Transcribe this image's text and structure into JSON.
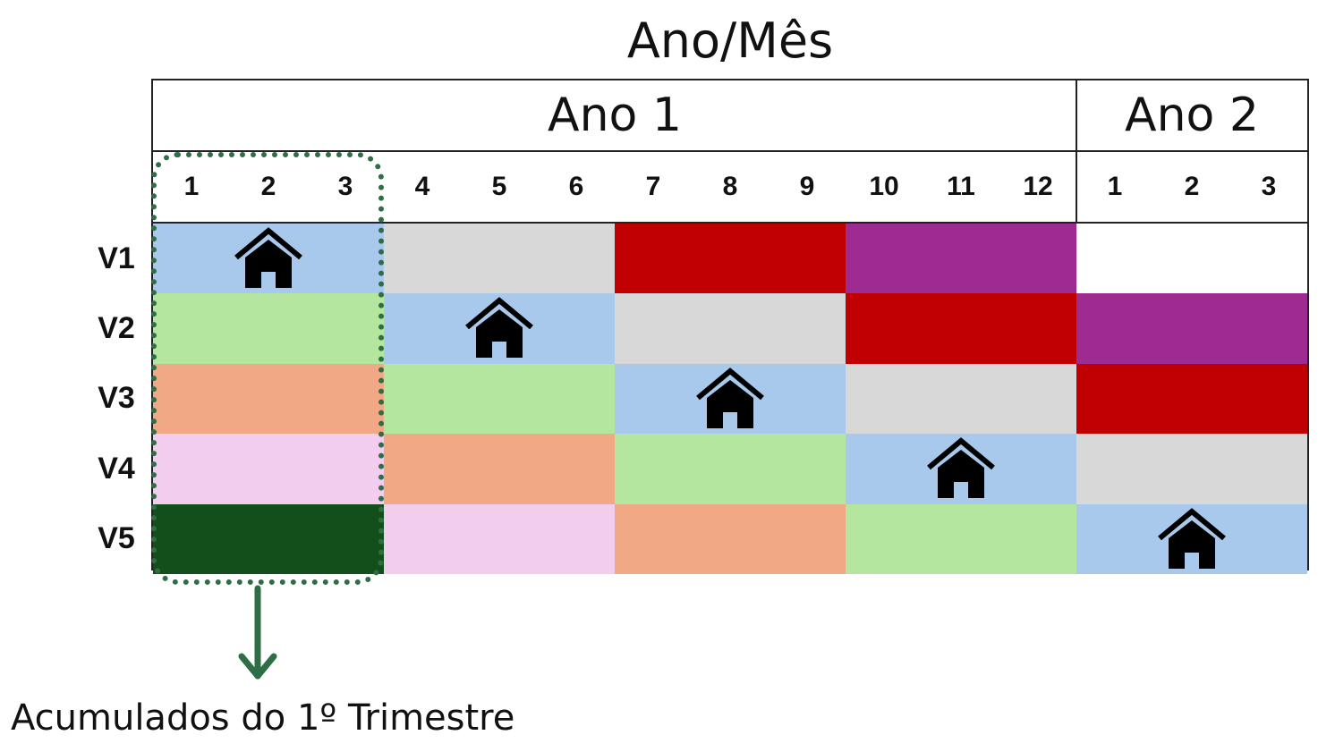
{
  "title": "Ano/Mês",
  "years": [
    {
      "label": "Ano 1",
      "months": 12
    },
    {
      "label": "Ano 2",
      "months": 3
    }
  ],
  "month_labels": [
    "1",
    "2",
    "3",
    "4",
    "5",
    "6",
    "7",
    "8",
    "9",
    "10",
    "11",
    "12",
    "1",
    "2",
    "3"
  ],
  "colors": {
    "blue": "#a9c9ec",
    "gray": "#d8d8d8",
    "red": "#c00000",
    "purple": "#9e2b8f",
    "white": "#ffffff",
    "green": "#b4e6a0",
    "orange": "#f0a984",
    "pink": "#f2cdee",
    "darkgreen": "#124f1b",
    "highlight": "#2e6e45"
  },
  "rows": [
    {
      "label": "V1",
      "blocks": [
        {
          "start": 1,
          "span": 3,
          "color": "blue",
          "icon": "house-icon"
        },
        {
          "start": 4,
          "span": 3,
          "color": "gray"
        },
        {
          "start": 7,
          "span": 3,
          "color": "red"
        },
        {
          "start": 10,
          "span": 3,
          "color": "purple"
        },
        {
          "start": 13,
          "span": 3,
          "color": "white"
        }
      ]
    },
    {
      "label": "V2",
      "blocks": [
        {
          "start": 1,
          "span": 3,
          "color": "green"
        },
        {
          "start": 4,
          "span": 3,
          "color": "blue",
          "icon": "house-icon"
        },
        {
          "start": 7,
          "span": 3,
          "color": "gray"
        },
        {
          "start": 10,
          "span": 3,
          "color": "red"
        },
        {
          "start": 13,
          "span": 3,
          "color": "purple"
        }
      ]
    },
    {
      "label": "V3",
      "blocks": [
        {
          "start": 1,
          "span": 3,
          "color": "orange"
        },
        {
          "start": 4,
          "span": 3,
          "color": "green"
        },
        {
          "start": 7,
          "span": 3,
          "color": "blue",
          "icon": "house-icon"
        },
        {
          "start": 10,
          "span": 3,
          "color": "gray"
        },
        {
          "start": 13,
          "span": 3,
          "color": "red"
        }
      ]
    },
    {
      "label": "V4",
      "blocks": [
        {
          "start": 1,
          "span": 3,
          "color": "pink"
        },
        {
          "start": 4,
          "span": 3,
          "color": "orange"
        },
        {
          "start": 7,
          "span": 3,
          "color": "green"
        },
        {
          "start": 10,
          "span": 3,
          "color": "blue",
          "icon": "house-icon"
        },
        {
          "start": 13,
          "span": 3,
          "color": "gray"
        }
      ]
    },
    {
      "label": "V5",
      "blocks": [
        {
          "start": 1,
          "span": 3,
          "color": "darkgreen"
        },
        {
          "start": 4,
          "span": 3,
          "color": "pink"
        },
        {
          "start": 7,
          "span": 3,
          "color": "orange"
        },
        {
          "start": 10,
          "span": 3,
          "color": "green"
        },
        {
          "start": 13,
          "span": 3,
          "color": "blue",
          "icon": "house-icon"
        }
      ]
    }
  ],
  "caption": "Acumulados do 1º Trimestre"
}
